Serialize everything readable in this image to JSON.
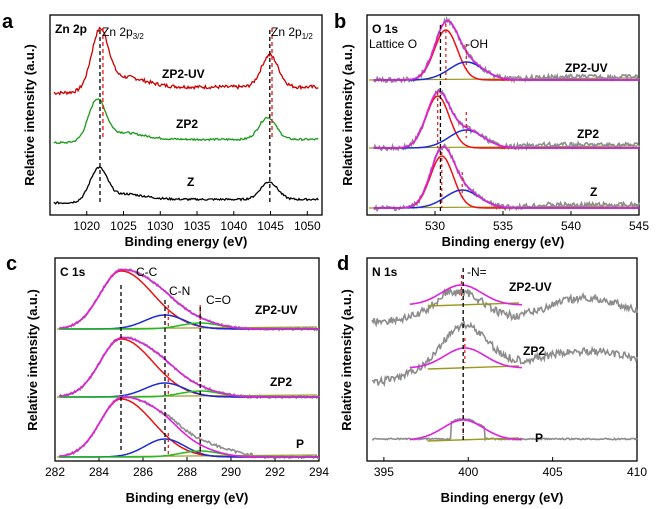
{
  "panels": [
    {
      "id": "a",
      "letter": "a",
      "type": "line",
      "xlabel": "Binding energy (eV)",
      "ylabel": "Relative intensity (a.u.)",
      "xlim": [
        1015,
        1052
      ],
      "xticks": [
        "1020",
        "1025",
        "1030",
        "1035",
        "1040",
        "1045",
        "1050"
      ],
      "annotations": [
        "Zn 2p",
        "Zn 2p3/2",
        "Zn 2p1/2"
      ],
      "series": [
        {
          "name": "ZP2-UV",
          "color": "#cc0000",
          "peaks": [
            1021.8,
            1044.9
          ]
        },
        {
          "name": "ZP2",
          "color": "#1a9a1a",
          "peaks": [
            1021.4,
            1044.6
          ]
        },
        {
          "name": "Z",
          "color": "#000000",
          "peaks": [
            1021.6,
            1044.8
          ]
        }
      ],
      "vlines": [
        1021.8,
        1044.9
      ]
    },
    {
      "id": "b",
      "letter": "b",
      "type": "line",
      "xlabel": "Binding energy (eV)",
      "ylabel": "Relative intensity (a.u.)",
      "xlim": [
        525,
        545
      ],
      "xticks": [
        "530",
        "535",
        "540",
        "545"
      ],
      "annotations": [
        "O 1s",
        "Lattice O",
        "-OH"
      ],
      "series": [
        {
          "name": "ZP2-UV",
          "lattice_o": 530.8,
          "oh": 532.3
        },
        {
          "name": "ZP2",
          "lattice_o": 530.2,
          "oh": 532.3
        },
        {
          "name": "Z",
          "lattice_o": 530.5,
          "oh": 532.0
        }
      ],
      "vlines": [
        530.4
      ]
    },
    {
      "id": "c",
      "letter": "c",
      "type": "line",
      "xlabel": "Binding energy (eV)",
      "ylabel": "Relative intensity (a.u.)",
      "xlim": [
        282,
        294
      ],
      "xticks": [
        "282",
        "284",
        "286",
        "288",
        "290",
        "292",
        "294"
      ],
      "annotations": [
        "C 1s",
        "C-C",
        "C-N",
        "C=O"
      ],
      "series": [
        {
          "name": "ZP2-UV",
          "cc": 285.0,
          "cn": 287.0,
          "co": 288.6
        },
        {
          "name": "ZP2",
          "cc": 285.0,
          "cn": 287.0,
          "co": 288.6
        },
        {
          "name": "P",
          "cc": 285.0,
          "cn": 287.0,
          "co": 288.6
        }
      ],
      "vlines": [
        285.0,
        287.0,
        288.6
      ]
    },
    {
      "id": "d",
      "letter": "d",
      "type": "line",
      "xlabel": "Binding energy (eV)",
      "ylabel": "Relative intensity (a.u.)",
      "xlim": [
        394,
        410
      ],
      "xticks": [
        "395",
        "400",
        "405",
        "410"
      ],
      "annotations": [
        "N 1s",
        "-N="
      ],
      "series": [
        {
          "name": "ZP2-UV",
          "peak": 399.6
        },
        {
          "name": "ZP2",
          "peak": 399.8
        },
        {
          "name": "P",
          "peak": 399.7
        }
      ],
      "vlines": [
        399.7
      ]
    }
  ],
  "colors": {
    "raw": "#8c8c8c",
    "envelope": "#e020e0",
    "comp1": "#ee1111",
    "comp2": "#1a2bd6",
    "comp3": "#22bb22",
    "baseline": "#9a9a20",
    "vline": "#000000",
    "vline_red": "#ee1111"
  }
}
